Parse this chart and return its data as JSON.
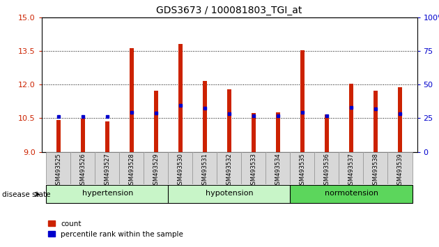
{
  "title": "GDS3673 / 100081803_TGI_at",
  "samples": [
    "GSM493525",
    "GSM493526",
    "GSM493527",
    "GSM493528",
    "GSM493529",
    "GSM493530",
    "GSM493531",
    "GSM493532",
    "GSM493533",
    "GSM493534",
    "GSM493535",
    "GSM493536",
    "GSM493537",
    "GSM493538",
    "GSM493539"
  ],
  "count_values": [
    10.42,
    10.47,
    10.37,
    13.63,
    11.73,
    13.82,
    12.15,
    11.78,
    10.73,
    10.75,
    13.52,
    10.68,
    12.03,
    11.72,
    11.87
  ],
  "percentile_values": [
    26.5,
    26.5,
    26.5,
    29.5,
    29.0,
    34.5,
    32.5,
    28.5,
    27.0,
    27.0,
    29.5,
    27.0,
    33.0,
    32.0,
    28.5
  ],
  "y_min": 9,
  "y_max": 15,
  "y_ticks_left": [
    9,
    10.5,
    12,
    13.5,
    15
  ],
  "y_ticks_right": [
    0,
    25,
    50,
    75,
    100
  ],
  "group_ranges": [
    {
      "label": "hypertension",
      "start": 0,
      "end": 4,
      "color": "#c8f5c8"
    },
    {
      "label": "hypotension",
      "start": 5,
      "end": 9,
      "color": "#c8f5c8"
    },
    {
      "label": "normotension",
      "start": 10,
      "end": 14,
      "color": "#5cd65c"
    }
  ],
  "bar_color": "#cc2200",
  "percentile_color": "#0000cc",
  "bar_width": 0.18,
  "grid_color": "black",
  "tick_color_left": "#cc2200",
  "tick_color_right": "#0000cc",
  "label_box_color": "#d8d8d8",
  "label_box_edgecolor": "#888888"
}
